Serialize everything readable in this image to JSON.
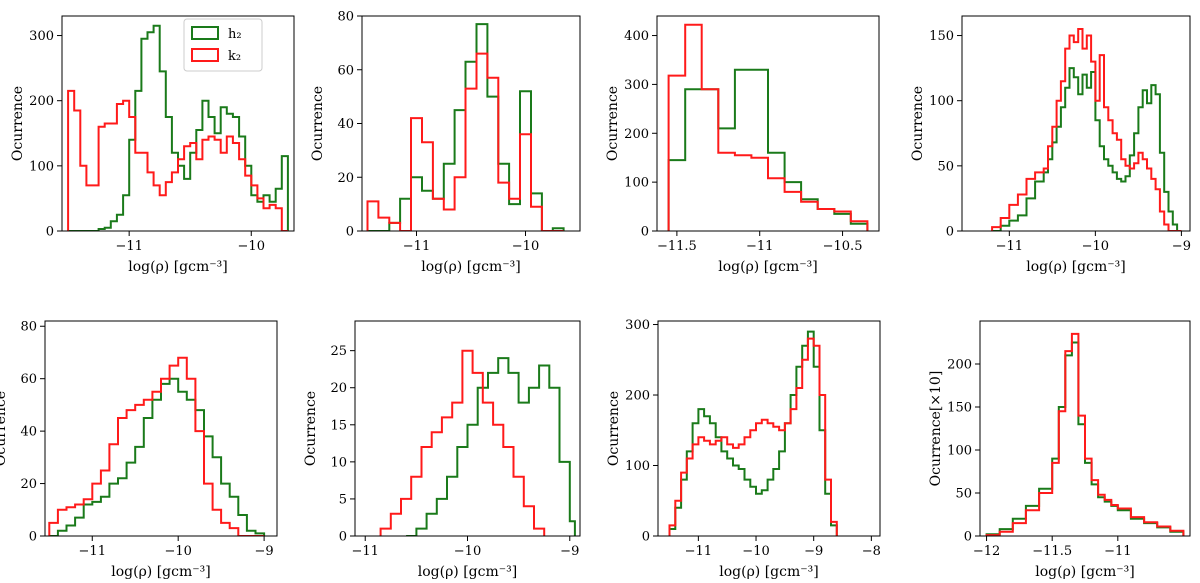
{
  "colors": {
    "h2": "#1a7a1a",
    "k2": "#ff1a1a"
  },
  "legend": {
    "entries": [
      {
        "key": "h2",
        "label": "h₂"
      },
      {
        "key": "k2",
        "label": "k₂"
      }
    ],
    "placement": "upper-right of first panel"
  },
  "chart_data": [
    {
      "type": "histogram-step",
      "xlabel": "log(ρ) [gcm⁻³]",
      "ylabel": "Ocurrence",
      "xlim": [
        -11.55,
        -9.65
      ],
      "ylim": [
        0,
        330
      ],
      "xticks": [
        -11,
        -10
      ],
      "yticks": [
        0,
        100,
        200,
        300
      ],
      "series": [
        {
          "name": "h₂",
          "edges": [
            -11.5,
            -11.45,
            -11.4,
            -11.35,
            -11.3,
            -11.25,
            -11.2,
            -11.15,
            -11.1,
            -11.05,
            -11.0,
            -10.95,
            -10.9,
            -10.85,
            -10.8,
            -10.75,
            -10.7,
            -10.65,
            -10.6,
            -10.55,
            -10.5,
            -10.45,
            -10.4,
            -10.35,
            -10.3,
            -10.25,
            -10.2,
            -10.15,
            -10.1,
            -10.05,
            -10.0,
            -9.95,
            -9.9,
            -9.85,
            -9.8,
            -9.75,
            -9.7
          ],
          "values": [
            0,
            0,
            0,
            0,
            0,
            3,
            5,
            15,
            25,
            55,
            140,
            215,
            295,
            305,
            315,
            245,
            175,
            120,
            100,
            80,
            120,
            155,
            200,
            175,
            150,
            190,
            180,
            175,
            145,
            100,
            55,
            45,
            55,
            45,
            65,
            115
          ]
        },
        {
          "name": "k₂",
          "edges": [
            -11.5,
            -11.45,
            -11.4,
            -11.35,
            -11.3,
            -11.25,
            -11.2,
            -11.15,
            -11.1,
            -11.05,
            -11.0,
            -10.95,
            -10.9,
            -10.85,
            -10.8,
            -10.75,
            -10.7,
            -10.65,
            -10.6,
            -10.55,
            -10.5,
            -10.45,
            -10.4,
            -10.35,
            -10.3,
            -10.25,
            -10.2,
            -10.15,
            -10.1,
            -10.05,
            -10.0,
            -9.95,
            -9.9,
            -9.85,
            -9.8,
            -9.75,
            -9.7
          ],
          "values": [
            215,
            185,
            100,
            70,
            70,
            160,
            165,
            165,
            195,
            200,
            175,
            120,
            120,
            90,
            70,
            55,
            75,
            90,
            110,
            130,
            135,
            110,
            140,
            145,
            140,
            120,
            145,
            135,
            110,
            85,
            70,
            50,
            35,
            40,
            35,
            0
          ]
        }
      ]
    },
    {
      "type": "histogram-step",
      "xlabel": "log(ρ) [gcm⁻³]",
      "ylabel": "Ocurrence",
      "xlim": [
        -11.5,
        -9.5
      ],
      "ylim": [
        0,
        80
      ],
      "xticks": [
        -11,
        -10
      ],
      "yticks": [
        0,
        20,
        40,
        60,
        80
      ],
      "series": [
        {
          "name": "h₂",
          "edges": [
            -11.45,
            -11.35,
            -11.25,
            -11.15,
            -11.05,
            -10.95,
            -10.85,
            -10.75,
            -10.65,
            -10.55,
            -10.45,
            -10.35,
            -10.25,
            -10.15,
            -10.05,
            -9.95,
            -9.85,
            -9.75,
            -9.65
          ],
          "values": [
            0,
            0,
            3,
            12,
            20,
            15,
            12,
            25,
            45,
            63,
            77,
            50,
            25,
            10,
            52,
            14,
            0,
            1
          ]
        },
        {
          "name": "k₂",
          "edges": [
            -11.45,
            -11.35,
            -11.25,
            -11.15,
            -11.05,
            -10.95,
            -10.85,
            -10.75,
            -10.65,
            -10.55,
            -10.45,
            -10.35,
            -10.25,
            -10.15,
            -10.05,
            -9.95,
            -9.85,
            -9.75,
            -9.65
          ],
          "values": [
            11,
            5,
            3,
            0,
            42,
            33,
            12,
            8,
            20,
            53,
            66,
            57,
            18,
            12,
            36,
            9,
            0,
            0
          ]
        }
      ]
    },
    {
      "type": "histogram-step",
      "xlabel": "log(ρ) [gcm⁻³]",
      "ylabel": "Ocurrence",
      "xlim": [
        -11.62,
        -10.28
      ],
      "ylim": [
        0,
        440
      ],
      "xticks": [
        -11.5,
        -11.0,
        -10.5
      ],
      "yticks": [
        0,
        100,
        200,
        300,
        400
      ],
      "series": [
        {
          "name": "h₂",
          "edges": [
            -11.55,
            -11.45,
            -11.35,
            -11.25,
            -11.15,
            -11.05,
            -10.95,
            -10.85,
            -10.75,
            -10.65,
            -10.55,
            -10.45,
            -10.35
          ],
          "values": [
            145,
            290,
            290,
            210,
            330,
            330,
            160,
            100,
            65,
            45,
            35,
            15
          ]
        },
        {
          "name": "k₂",
          "edges": [
            -11.55,
            -11.45,
            -11.35,
            -11.25,
            -11.15,
            -11.05,
            -10.95,
            -10.85,
            -10.75,
            -10.65,
            -10.55,
            -10.45,
            -10.35
          ],
          "values": [
            318,
            422,
            290,
            160,
            155,
            150,
            108,
            80,
            60,
            45,
            40,
            20
          ]
        }
      ]
    },
    {
      "type": "histogram-step",
      "xlabel": "log(ρ) [gcm⁻³]",
      "ylabel": "Ocurrence",
      "xlim": [
        -11.55,
        -8.9
      ],
      "ylim": [
        0,
        165
      ],
      "xticks": [
        -11,
        -10,
        -9
      ],
      "yticks": [
        0,
        50,
        100,
        150
      ],
      "series": [
        {
          "name": "h₂",
          "edges": [
            -11.2,
            -11.1,
            -11.0,
            -10.9,
            -10.8,
            -10.7,
            -10.6,
            -10.55,
            -10.5,
            -10.45,
            -10.4,
            -10.35,
            -10.3,
            -10.25,
            -10.2,
            -10.15,
            -10.1,
            -10.05,
            -10.0,
            -9.95,
            -9.9,
            -9.85,
            -9.8,
            -9.75,
            -9.7,
            -9.65,
            -9.6,
            -9.55,
            -9.5,
            -9.45,
            -9.4,
            -9.35,
            -9.3,
            -9.25,
            -9.2,
            -9.15,
            -9.1,
            -9.05,
            -9.0
          ],
          "values": [
            0,
            4,
            8,
            12,
            25,
            38,
            45,
            55,
            68,
            80,
            95,
            110,
            125,
            118,
            105,
            120,
            110,
            122,
            85,
            65,
            55,
            50,
            45,
            40,
            38,
            42,
            58,
            75,
            95,
            108,
            98,
            112,
            105,
            60,
            30,
            15,
            5,
            0
          ]
        },
        {
          "name": "k₂",
          "edges": [
            -11.2,
            -11.1,
            -11.0,
            -10.9,
            -10.8,
            -10.7,
            -10.6,
            -10.55,
            -10.5,
            -10.45,
            -10.4,
            -10.35,
            -10.3,
            -10.25,
            -10.2,
            -10.15,
            -10.1,
            -10.05,
            -10.0,
            -9.95,
            -9.9,
            -9.85,
            -9.8,
            -9.75,
            -9.7,
            -9.65,
            -9.6,
            -9.55,
            -9.5,
            -9.45,
            -9.4,
            -9.35,
            -9.3,
            -9.25,
            -9.2,
            -9.15,
            -9.1,
            -9.05,
            -9.0
          ],
          "values": [
            3,
            10,
            20,
            28,
            40,
            45,
            48,
            65,
            80,
            100,
            115,
            140,
            150,
            145,
            155,
            140,
            150,
            130,
            100,
            135,
            95,
            85,
            75,
            70,
            55,
            50,
            48,
            52,
            60,
            55,
            48,
            40,
            32,
            15,
            5,
            0,
            0,
            0
          ]
        }
      ]
    },
    {
      "type": "histogram-step",
      "xlabel": "log(ρ) [gcm⁻³]",
      "ylabel": "Ocurrence",
      "xlim": [
        -11.55,
        -8.85
      ],
      "ylim": [
        0,
        82
      ],
      "xticks": [
        -11,
        -10,
        -9
      ],
      "yticks": [
        0,
        20,
        40,
        60,
        80
      ],
      "series": [
        {
          "name": "h₂",
          "edges": [
            -11.5,
            -11.4,
            -11.3,
            -11.2,
            -11.1,
            -11.0,
            -10.9,
            -10.8,
            -10.7,
            -10.6,
            -10.5,
            -10.4,
            -10.3,
            -10.2,
            -10.1,
            -10.0,
            -9.9,
            -9.8,
            -9.7,
            -9.6,
            -9.5,
            -9.4,
            -9.3,
            -9.2,
            -9.1,
            -9.0
          ],
          "values": [
            0,
            2,
            4,
            7,
            12,
            13,
            15,
            20,
            22,
            28,
            34,
            45,
            52,
            58,
            60,
            55,
            52,
            48,
            38,
            30,
            20,
            15,
            8,
            2,
            1
          ]
        },
        {
          "name": "k₂",
          "edges": [
            -11.5,
            -11.4,
            -11.3,
            -11.2,
            -11.1,
            -11.0,
            -10.9,
            -10.8,
            -10.7,
            -10.6,
            -10.5,
            -10.4,
            -10.3,
            -10.2,
            -10.1,
            -10.0,
            -9.9,
            -9.8,
            -9.7,
            -9.6,
            -9.5,
            -9.4,
            -9.3,
            -9.2,
            -9.1,
            -9.0
          ],
          "values": [
            5,
            10,
            11,
            12,
            14,
            20,
            25,
            35,
            45,
            48,
            50,
            52,
            55,
            60,
            65,
            68,
            60,
            40,
            20,
            10,
            5,
            3,
            0,
            0,
            0
          ]
        }
      ]
    },
    {
      "type": "histogram-step",
      "xlabel": "log(ρ) [gcm⁻³]",
      "ylabel": "Ocurrence",
      "xlim": [
        -11.1,
        -8.9
      ],
      "ylim": [
        0,
        29
      ],
      "xticks": [
        -11,
        -10,
        -9
      ],
      "yticks": [
        0,
        5,
        10,
        15,
        20,
        25
      ],
      "series": [
        {
          "name": "h₂",
          "edges": [
            -10.6,
            -10.5,
            -10.4,
            -10.3,
            -10.2,
            -10.1,
            -10.0,
            -9.9,
            -9.8,
            -9.7,
            -9.6,
            -9.5,
            -9.4,
            -9.3,
            -9.2,
            -9.1,
            -9.0,
            -8.95
          ],
          "values": [
            0,
            1,
            3,
            5,
            8,
            12,
            15,
            20,
            22,
            24,
            22,
            18,
            20,
            23,
            20,
            10,
            2
          ]
        },
        {
          "name": "k₂",
          "edges": [
            -10.85,
            -10.75,
            -10.65,
            -10.55,
            -10.45,
            -10.35,
            -10.25,
            -10.15,
            -10.05,
            -9.95,
            -9.85,
            -9.75,
            -9.65,
            -9.55,
            -9.45,
            -9.35,
            -9.25
          ],
          "values": [
            1,
            3,
            5,
            8,
            12,
            14,
            16,
            18,
            25,
            22,
            18,
            15,
            12,
            8,
            4,
            1
          ]
        }
      ]
    },
    {
      "type": "histogram-step",
      "xlabel": "log(ρ) [gcm⁻³]",
      "ylabel": "Ocurrence",
      "xlim": [
        -11.7,
        -7.85
      ],
      "ylim": [
        0,
        305
      ],
      "xticks": [
        -11,
        -10,
        -9,
        -8
      ],
      "yticks": [
        0,
        100,
        200,
        300
      ],
      "series": [
        {
          "name": "h₂",
          "edges": [
            -11.5,
            -11.4,
            -11.3,
            -11.2,
            -11.1,
            -11.0,
            -10.9,
            -10.8,
            -10.7,
            -10.6,
            -10.5,
            -10.4,
            -10.3,
            -10.2,
            -10.1,
            -10.0,
            -9.9,
            -9.8,
            -9.7,
            -9.6,
            -9.5,
            -9.4,
            -9.3,
            -9.2,
            -9.1,
            -9.0,
            -8.9,
            -8.8,
            -8.7,
            -8.6
          ],
          "values": [
            10,
            40,
            80,
            120,
            160,
            180,
            170,
            160,
            140,
            120,
            110,
            100,
            95,
            80,
            70,
            60,
            65,
            80,
            95,
            120,
            160,
            200,
            240,
            270,
            290,
            240,
            150,
            60,
            15
          ]
        },
        {
          "name": "k₂",
          "edges": [
            -11.5,
            -11.4,
            -11.3,
            -11.2,
            -11.1,
            -11.0,
            -10.9,
            -10.8,
            -10.7,
            -10.6,
            -10.5,
            -10.4,
            -10.3,
            -10.2,
            -10.1,
            -10.0,
            -9.9,
            -9.8,
            -9.7,
            -9.6,
            -9.5,
            -9.4,
            -9.3,
            -9.2,
            -9.1,
            -9.0,
            -8.9,
            -8.8,
            -8.7,
            -8.6
          ],
          "values": [
            15,
            50,
            90,
            110,
            130,
            140,
            135,
            130,
            135,
            140,
            130,
            125,
            130,
            140,
            150,
            160,
            165,
            160,
            155,
            150,
            160,
            180,
            210,
            250,
            280,
            270,
            200,
            80,
            20
          ]
        }
      ]
    },
    {
      "type": "histogram-step",
      "xlabel": "log(ρ) [gcm⁻³]",
      "ylabel": "Ocurrence[×10]",
      "xlim": [
        -12.05,
        -10.45
      ],
      "ylim": [
        0,
        250
      ],
      "xticks": [
        -12,
        -11.5,
        -11
      ],
      "yticks": [
        0,
        50,
        100,
        150,
        200
      ],
      "series": [
        {
          "name": "h₂",
          "edges": [
            -12.0,
            -11.9,
            -11.8,
            -11.7,
            -11.6,
            -11.5,
            -11.45,
            -11.4,
            -11.35,
            -11.3,
            -11.25,
            -11.2,
            -11.15,
            -11.1,
            -11.05,
            -11.0,
            -10.9,
            -10.8,
            -10.7,
            -10.6,
            -10.5
          ],
          "values": [
            2,
            8,
            20,
            35,
            55,
            90,
            150,
            210,
            225,
            130,
            85,
            60,
            45,
            40,
            35,
            30,
            20,
            15,
            10,
            5
          ]
        },
        {
          "name": "k₂",
          "edges": [
            -12.0,
            -11.9,
            -11.8,
            -11.7,
            -11.6,
            -11.5,
            -11.45,
            -11.4,
            -11.35,
            -11.3,
            -11.25,
            -11.2,
            -11.15,
            -11.1,
            -11.05,
            -11.0,
            -10.9,
            -10.8,
            -10.7,
            -10.6,
            -10.5
          ],
          "values": [
            1,
            5,
            15,
            30,
            50,
            85,
            145,
            215,
            235,
            140,
            90,
            65,
            48,
            42,
            36,
            32,
            22,
            16,
            11,
            6
          ]
        }
      ]
    }
  ]
}
